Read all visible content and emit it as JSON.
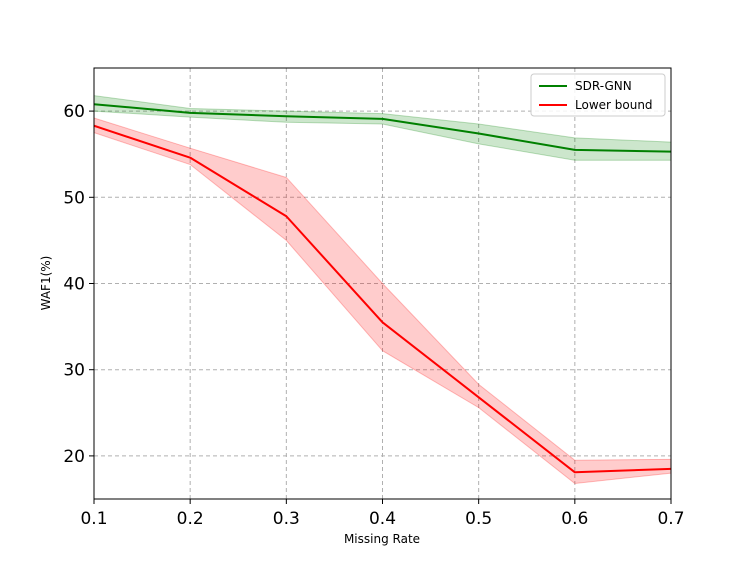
{
  "chart_data": {
    "type": "line",
    "xlabel": "Missing Rate",
    "ylabel": "WAF1(%)",
    "x": [
      0.1,
      0.2,
      0.3,
      0.4,
      0.5,
      0.6,
      0.7
    ],
    "x_ticks": [
      "0.1",
      "0.2",
      "0.3",
      "0.4",
      "0.5",
      "0.6",
      "0.7"
    ],
    "y_ticks": [
      "20",
      "30",
      "40",
      "50",
      "60"
    ],
    "xlim": [
      0.1,
      0.7
    ],
    "ylim": [
      15,
      65
    ],
    "grid": true,
    "legend_position": "top-right",
    "series": [
      {
        "name": "SDR-GNN",
        "color": "#008000",
        "values": [
          60.8,
          59.8,
          59.4,
          59.1,
          57.4,
          55.5,
          55.3
        ],
        "lower": [
          60.0,
          59.3,
          58.7,
          58.5,
          56.2,
          54.3,
          54.3
        ],
        "upper": [
          61.8,
          60.3,
          60.0,
          59.7,
          58.5,
          56.9,
          56.4
        ]
      },
      {
        "name": "Lower bound",
        "color": "#ff0000",
        "values": [
          58.3,
          54.6,
          47.8,
          35.5,
          26.8,
          18.1,
          18.5
        ],
        "lower": [
          57.5,
          53.8,
          45.0,
          32.2,
          25.6,
          16.8,
          18.0
        ],
        "upper": [
          59.2,
          55.7,
          52.3,
          40.0,
          28.3,
          19.5,
          19.6
        ]
      }
    ]
  }
}
